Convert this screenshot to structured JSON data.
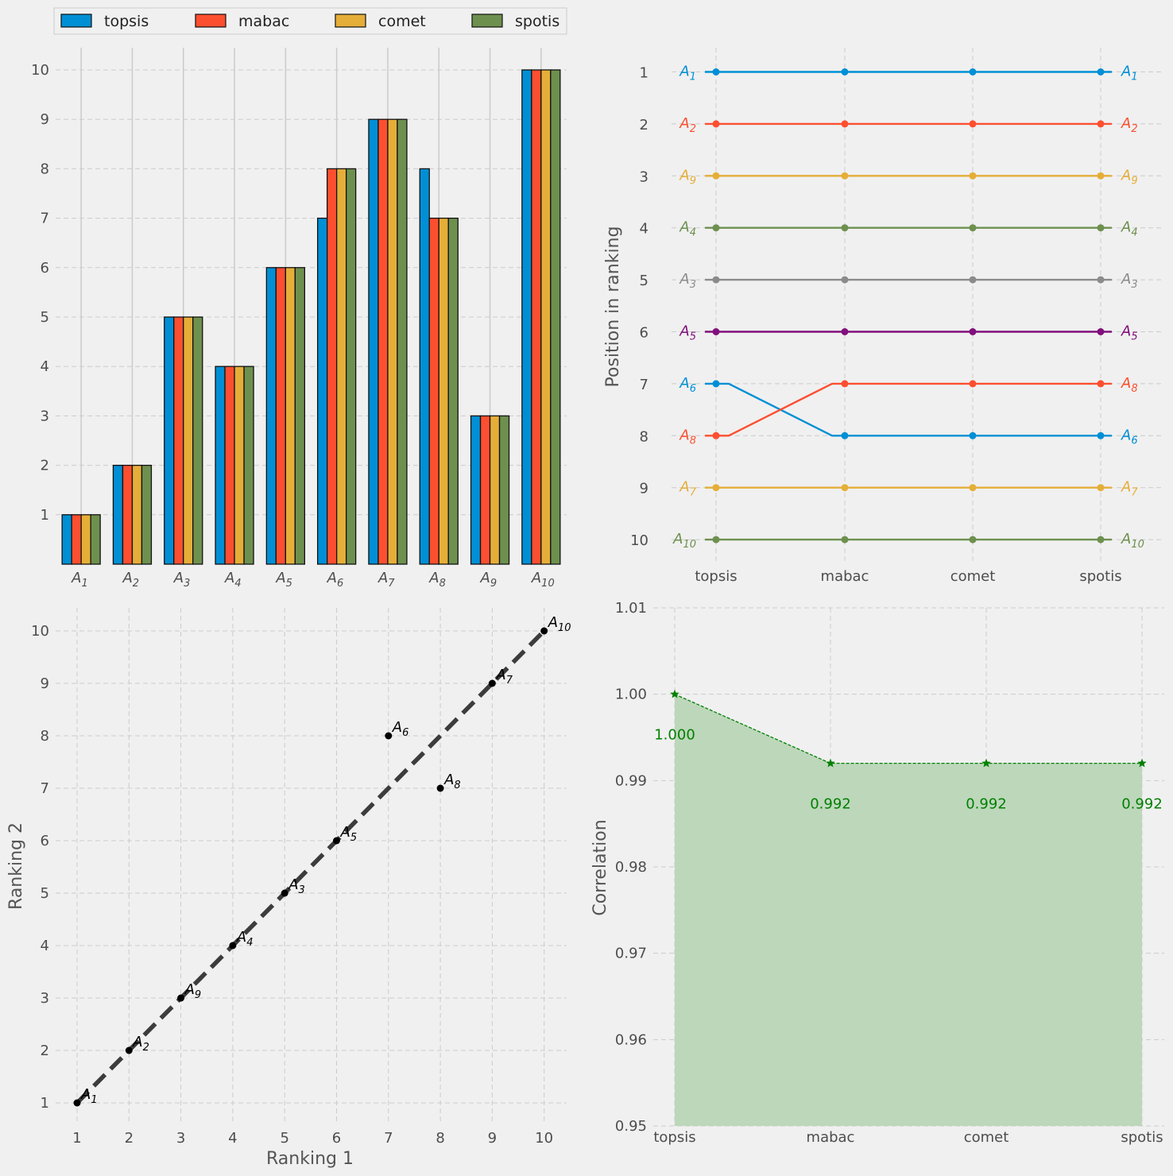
{
  "colors": {
    "background": "#f0f0f0",
    "topsis": "#008fd5",
    "mabac": "#fc4f30",
    "comet": "#e5ae38",
    "spotis": "#6d904f",
    "gray": "#8b8b8b",
    "purple": "#810f7c",
    "correlation": "#008000",
    "correlation_fill": "#bdd7bb",
    "diagonal": "#3c3c3c"
  },
  "methods": [
    "topsis",
    "mabac",
    "comet",
    "spotis"
  ],
  "alternatives": [
    {
      "base": "A",
      "sub": "1"
    },
    {
      "base": "A",
      "sub": "2"
    },
    {
      "base": "A",
      "sub": "3"
    },
    {
      "base": "A",
      "sub": "4"
    },
    {
      "base": "A",
      "sub": "5"
    },
    {
      "base": "A",
      "sub": "6"
    },
    {
      "base": "A",
      "sub": "7"
    },
    {
      "base": "A",
      "sub": "8"
    },
    {
      "base": "A",
      "sub": "9"
    },
    {
      "base": "A",
      "sub": "10"
    }
  ],
  "chart_data": [
    {
      "type": "bar",
      "id": "rankings-bar",
      "categories": [
        "A1",
        "A2",
        "A3",
        "A4",
        "A5",
        "A6",
        "A7",
        "A8",
        "A9",
        "A10"
      ],
      "series": [
        {
          "name": "topsis",
          "values": [
            1,
            2,
            5,
            4,
            6,
            7,
            9,
            8,
            3,
            10
          ]
        },
        {
          "name": "mabac",
          "values": [
            1,
            2,
            5,
            4,
            6,
            8,
            9,
            7,
            3,
            10
          ]
        },
        {
          "name": "comet",
          "values": [
            1,
            2,
            5,
            4,
            6,
            8,
            9,
            7,
            3,
            10
          ]
        },
        {
          "name": "spotis",
          "values": [
            1,
            2,
            5,
            4,
            6,
            8,
            9,
            7,
            3,
            10
          ]
        }
      ],
      "yticks": [
        1,
        2,
        3,
        4,
        5,
        6,
        7,
        8,
        9,
        10
      ],
      "ylim": [
        0,
        10.45
      ],
      "legend": "top",
      "grid": true
    },
    {
      "type": "line",
      "id": "rank-flow",
      "x": [
        "topsis",
        "mabac",
        "comet",
        "spotis"
      ],
      "ylabel": "Position in ranking",
      "yticks": [
        1,
        2,
        3,
        4,
        5,
        6,
        7,
        8,
        9,
        10
      ],
      "ylim": [
        10.45,
        0.45
      ],
      "y_inverted": true,
      "series": [
        {
          "alt": "A1",
          "values": [
            1,
            1,
            1,
            1
          ],
          "color": "#008fd5"
        },
        {
          "alt": "A2",
          "values": [
            2,
            2,
            2,
            2
          ],
          "color": "#fc4f30"
        },
        {
          "alt": "A9",
          "values": [
            3,
            3,
            3,
            3
          ],
          "color": "#e5ae38"
        },
        {
          "alt": "A4",
          "values": [
            4,
            4,
            4,
            4
          ],
          "color": "#6d904f"
        },
        {
          "alt": "A3",
          "values": [
            5,
            5,
            5,
            5
          ],
          "color": "#8b8b8b"
        },
        {
          "alt": "A5",
          "values": [
            6,
            6,
            6,
            6
          ],
          "color": "#810f7c"
        },
        {
          "alt": "A6",
          "values": [
            7,
            8,
            8,
            8
          ],
          "color": "#008fd5"
        },
        {
          "alt": "A8",
          "values": [
            8,
            7,
            7,
            7
          ],
          "color": "#fc4f30"
        },
        {
          "alt": "A7",
          "values": [
            9,
            9,
            9,
            9
          ],
          "color": "#e5ae38"
        },
        {
          "alt": "A10",
          "values": [
            10,
            10,
            10,
            10
          ],
          "color": "#6d904f"
        }
      ],
      "grid": true
    },
    {
      "type": "scatter",
      "id": "ranking-compare",
      "xlabel": "Ranking 1",
      "ylabel": "Ranking 2",
      "xticks": [
        1,
        2,
        3,
        4,
        5,
        6,
        7,
        8,
        9,
        10
      ],
      "yticks": [
        1,
        2,
        3,
        4,
        5,
        6,
        7,
        8,
        9,
        10
      ],
      "xlim": [
        0.45,
        10.45
      ],
      "ylim": [
        0.45,
        10.45
      ],
      "points": [
        {
          "alt": "A1",
          "x": 1,
          "y": 1
        },
        {
          "alt": "A2",
          "x": 2,
          "y": 2
        },
        {
          "alt": "A9",
          "x": 3,
          "y": 3
        },
        {
          "alt": "A4",
          "x": 4,
          "y": 4
        },
        {
          "alt": "A3",
          "x": 5,
          "y": 5
        },
        {
          "alt": "A5",
          "x": 6,
          "y": 6
        },
        {
          "alt": "A6",
          "x": 7,
          "y": 8
        },
        {
          "alt": "A8",
          "x": 8,
          "y": 7
        },
        {
          "alt": "A7",
          "x": 9,
          "y": 9
        },
        {
          "alt": "A10",
          "x": 10,
          "y": 10
        }
      ],
      "diagonal": {
        "from": 1,
        "to": 10
      },
      "grid": true
    },
    {
      "type": "area",
      "id": "correlation",
      "x": [
        "topsis",
        "mabac",
        "comet",
        "spotis"
      ],
      "values": [
        1.0,
        0.992,
        0.992,
        0.992
      ],
      "value_labels": [
        "1.000",
        "0.992",
        "0.992",
        "0.992"
      ],
      "ylabel": "Correlation",
      "yticks": [
        0.95,
        0.96,
        0.97,
        0.98,
        0.99,
        1.0,
        1.01
      ],
      "ytick_labels": [
        "0.95",
        "0.96",
        "0.97",
        "0.98",
        "0.99",
        "1.00",
        "1.01"
      ],
      "ylim": [
        0.95,
        1.01
      ],
      "grid": true
    }
  ]
}
